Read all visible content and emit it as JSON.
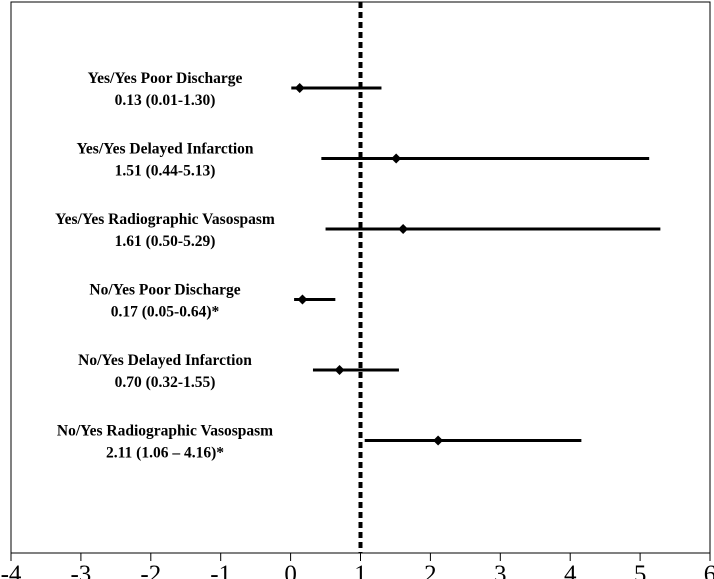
{
  "chart_data": {
    "type": "forest",
    "title": "",
    "xlabel": "",
    "ylabel": "",
    "xlim": [
      -4,
      6
    ],
    "x_ticks": [
      "-4",
      "-3",
      "-2",
      "-1",
      "0",
      "1",
      "2",
      "3",
      "4",
      "5",
      "6"
    ],
    "reference_line": 1,
    "grid": false,
    "series": [
      {
        "label": "Yes/Yes Poor Discharge",
        "value_text": "0.13 (0.01-1.30)",
        "estimate": 0.13,
        "ci_low": 0.01,
        "ci_high": 1.3
      },
      {
        "label": "Yes/Yes Delayed Infarction",
        "value_text": "1.51 (0.44-5.13)",
        "estimate": 1.51,
        "ci_low": 0.44,
        "ci_high": 5.13
      },
      {
        "label": "Yes/Yes Radiographic Vasospasm",
        "value_text": "1.61 (0.50-5.29)",
        "estimate": 1.61,
        "ci_low": 0.5,
        "ci_high": 5.29
      },
      {
        "label": "No/Yes Poor Discharge",
        "value_text": "0.17 (0.05-0.64)*",
        "estimate": 0.17,
        "ci_low": 0.05,
        "ci_high": 0.64
      },
      {
        "label": "No/Yes Delayed Infarction",
        "value_text": "0.70 (0.32-1.55)",
        "estimate": 0.7,
        "ci_low": 0.32,
        "ci_high": 1.55
      },
      {
        "label": "No/Yes Radiographic Vasospasm",
        "value_text": "2.11 (1.06 – 4.16)*",
        "estimate": 2.11,
        "ci_low": 1.06,
        "ci_high": 4.16
      }
    ]
  }
}
